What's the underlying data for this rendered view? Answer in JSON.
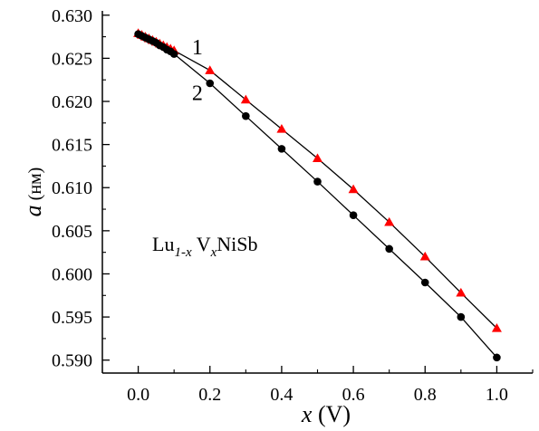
{
  "chart_data": {
    "type": "scatter",
    "xlim": [
      -0.1,
      1.1
    ],
    "ylim": [
      0.5885,
      0.6305
    ],
    "x_ticks": [
      "0.0",
      "0.2",
      "0.4",
      "0.6",
      "0.8",
      "1.0"
    ],
    "y_ticks": [
      "0.590",
      "0.595",
      "0.600",
      "0.605",
      "0.610",
      "0.615",
      "0.620",
      "0.625",
      "0.630"
    ],
    "xlabel": {
      "var": "x",
      "unit": " (V)"
    },
    "ylabel": {
      "var": "a",
      "unit": " (нм)"
    },
    "annotation": {
      "base1": "Lu",
      "sub1": "1-x",
      "base2": " V",
      "sub2": "x",
      "base3": "NiSb"
    },
    "grid": false,
    "series": [
      {
        "name": "1",
        "marker": "triangle",
        "color": "#ff0000",
        "x": [
          0.0,
          0.01,
          0.02,
          0.03,
          0.04,
          0.05,
          0.06,
          0.07,
          0.08,
          0.09,
          0.1,
          0.2,
          0.3,
          0.4,
          0.5,
          0.6,
          0.7,
          0.8,
          0.9,
          1.0
        ],
        "y": [
          0.6279,
          0.6277,
          0.6275,
          0.6273,
          0.6271,
          0.6269,
          0.6267,
          0.6265,
          0.6263,
          0.6261,
          0.6259,
          0.6236,
          0.6202,
          0.6168,
          0.6134,
          0.6098,
          0.606,
          0.602,
          0.5978,
          0.5937
        ]
      },
      {
        "name": "2",
        "marker": "circle",
        "color": "#000000",
        "x": [
          0.0,
          0.01,
          0.02,
          0.03,
          0.04,
          0.05,
          0.06,
          0.07,
          0.08,
          0.09,
          0.1,
          0.2,
          0.3,
          0.4,
          0.5,
          0.6,
          0.7,
          0.8,
          0.9,
          1.0
        ],
        "y": [
          0.6278,
          0.6276,
          0.6274,
          0.6272,
          0.627,
          0.6268,
          0.6265,
          0.6263,
          0.626,
          0.6258,
          0.6255,
          0.6221,
          0.6183,
          0.6145,
          0.6107,
          0.6068,
          0.6029,
          0.599,
          0.595,
          0.5903
        ]
      }
    ]
  }
}
